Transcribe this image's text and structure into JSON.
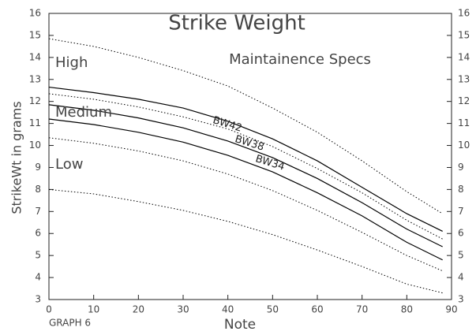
{
  "chart_data": {
    "type": "line",
    "title": "Strike Weight",
    "subtitle": "Maintainence Specs",
    "xlabel": "Note",
    "ylabel": "StrikeWt in grams",
    "annotations": [
      "High",
      "Medium",
      "Low",
      "GRAPH 6"
    ],
    "x": [
      0,
      10,
      20,
      30,
      40,
      50,
      60,
      70,
      80,
      88
    ],
    "series": [
      {
        "color": "#000000",
        "style": "dotted",
        "values": [
          14.85,
          14.5,
          14.0,
          13.4,
          12.7,
          11.7,
          10.6,
          9.3,
          7.9,
          6.9
        ]
      },
      {
        "name": "BW42",
        "color": "#000000",
        "style": "solid",
        "values": [
          12.65,
          12.4,
          12.1,
          11.7,
          11.1,
          10.3,
          9.3,
          8.1,
          6.9,
          6.1
        ]
      },
      {
        "color": "#000000",
        "style": "dotted",
        "values": [
          12.35,
          12.1,
          11.75,
          11.3,
          10.75,
          9.95,
          8.95,
          7.85,
          6.6,
          5.75
        ]
      },
      {
        "name": "BW38",
        "color": "#000000",
        "style": "solid",
        "values": [
          11.85,
          11.6,
          11.25,
          10.8,
          10.2,
          9.45,
          8.5,
          7.4,
          6.2,
          5.4
        ]
      },
      {
        "name": "BW34",
        "color": "#000000",
        "style": "solid",
        "values": [
          11.2,
          10.95,
          10.6,
          10.15,
          9.55,
          8.8,
          7.85,
          6.8,
          5.6,
          4.8
        ]
      },
      {
        "color": "#000000",
        "style": "dotted",
        "values": [
          10.35,
          10.1,
          9.75,
          9.3,
          8.7,
          7.95,
          7.05,
          6.05,
          5.0,
          4.3
        ]
      },
      {
        "color": "#000000",
        "style": "dotted",
        "values": [
          8.0,
          7.8,
          7.45,
          7.05,
          6.55,
          5.95,
          5.25,
          4.5,
          3.7,
          3.3
        ]
      }
    ],
    "xlim": [
      0,
      90
    ],
    "xticks": [
      0,
      10,
      20,
      30,
      40,
      50,
      60,
      70,
      80,
      90
    ],
    "ylim": [
      3,
      16
    ],
    "yticks": [
      3,
      4,
      5,
      6,
      7,
      8,
      9,
      10,
      11,
      12,
      13,
      14,
      15,
      16
    ],
    "y2lim": [
      3,
      16
    ],
    "y2ticks": [
      3,
      4,
      5,
      6,
      7,
      8,
      9,
      10,
      11,
      12,
      13,
      14,
      15,
      16
    ]
  }
}
